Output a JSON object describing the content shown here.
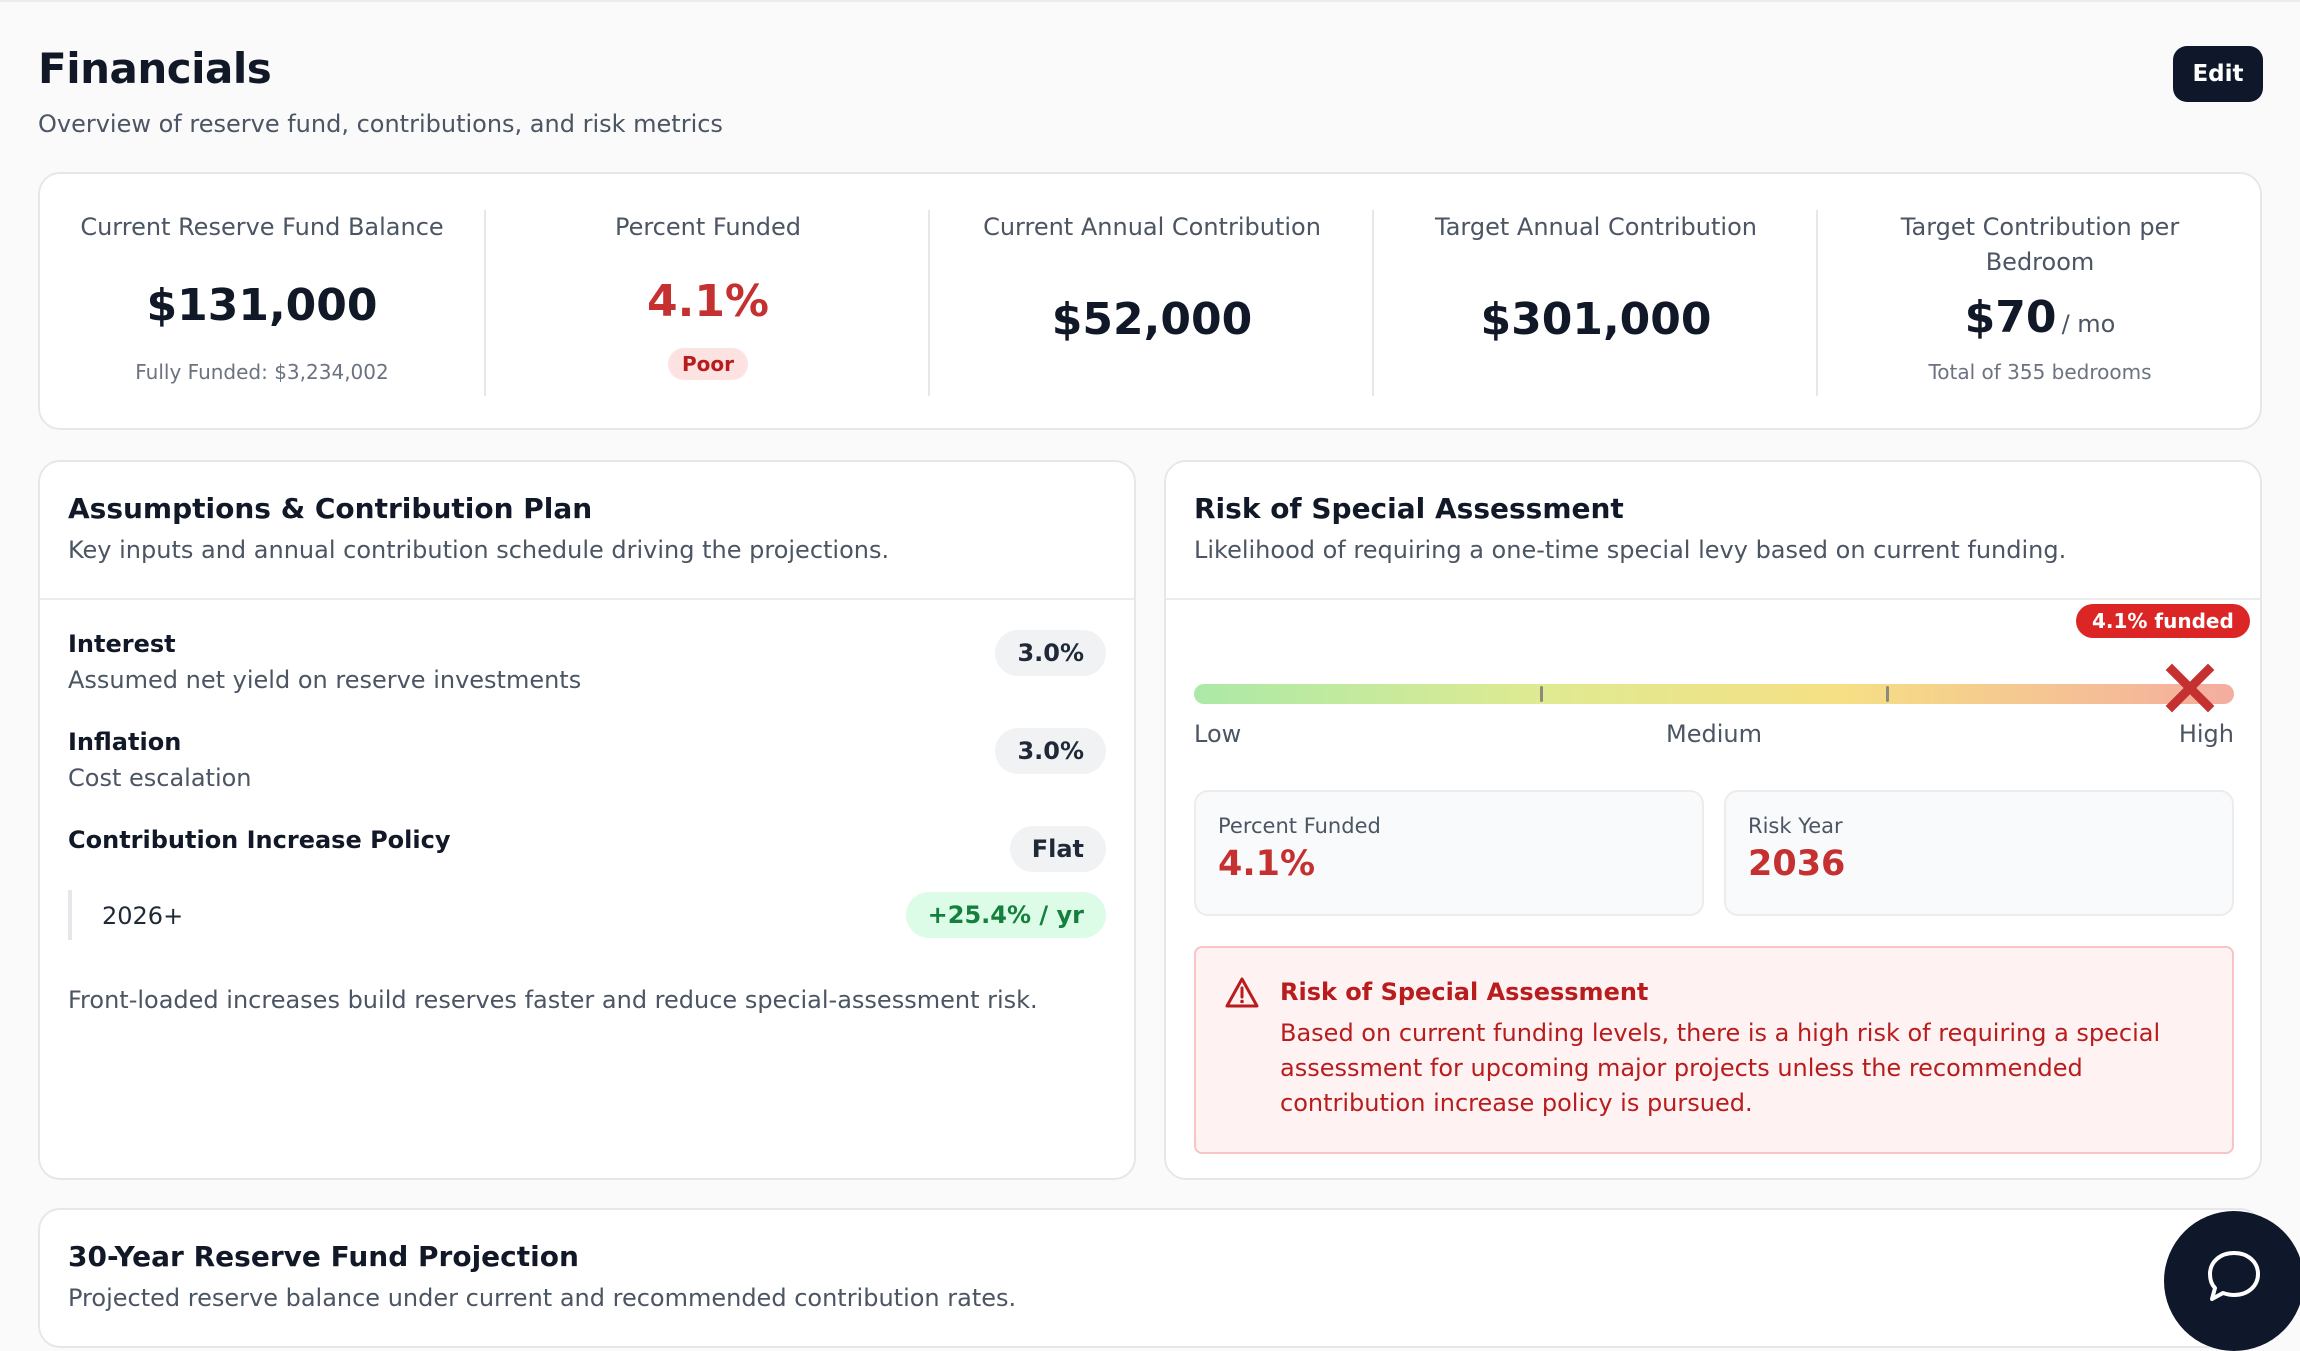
{
  "header": {
    "title": "Financials",
    "subtitle": "Overview of reserve fund, contributions, and risk metrics",
    "edit_label": "Edit"
  },
  "metrics": [
    {
      "label": "Current Reserve Fund Balance",
      "value": "$131,000",
      "note": "Fully Funded: $3,234,002"
    },
    {
      "label": "Percent Funded",
      "value": "4.1%",
      "badge": "Poor"
    },
    {
      "label": "Current Annual Contribution",
      "value": "$52,000"
    },
    {
      "label": "Target Annual Contribution",
      "value": "$301,000"
    },
    {
      "label": "Target Contribution per Bedroom",
      "value": "$70",
      "unit": "/ mo",
      "note": "Total of 355 bedrooms"
    }
  ],
  "assumptions": {
    "title": "Assumptions & Contribution Plan",
    "description": "Key inputs and annual contribution schedule driving the projections.",
    "interest": {
      "title": "Interest",
      "subtitle": "Assumed net yield on reserve investments",
      "value": "3.0%"
    },
    "inflation": {
      "title": "Inflation",
      "subtitle": "Cost escalation",
      "value": "3.0%"
    },
    "policy": {
      "title": "Contribution Increase Policy",
      "value": "Flat"
    },
    "schedule": {
      "year": "2026+",
      "rate": "+25.4% / yr"
    },
    "note": "Front-loaded increases build reserves faster and reduce special-assessment risk."
  },
  "risk": {
    "title": "Risk of Special Assessment",
    "description": "Likelihood of requiring a one-time special levy based on current funding.",
    "funded_badge": "4.1% funded",
    "meter": {
      "low": "Low",
      "medium": "Medium",
      "high": "High",
      "level": "high"
    },
    "percent_funded": {
      "label": "Percent Funded",
      "value": "4.1%"
    },
    "risk_year": {
      "label": "Risk Year",
      "value": "2036"
    },
    "alert": {
      "title": "Risk of Special Assessment",
      "text": "Based on current funding levels, there is a high risk of requiring a special assessment for upcoming major projects unless the recommended contribution increase policy is pursued."
    }
  },
  "projection": {
    "title": "30-Year Reserve Fund Projection",
    "description": "Projected reserve balance under current and recommended contribution rates."
  },
  "colors": {
    "primary_dark": "#0f172a",
    "danger": "#c53030",
    "success": "#15803d"
  },
  "icons": [
    "warning-triangle-icon",
    "x-marker-icon",
    "chat-bubble-icon"
  ]
}
